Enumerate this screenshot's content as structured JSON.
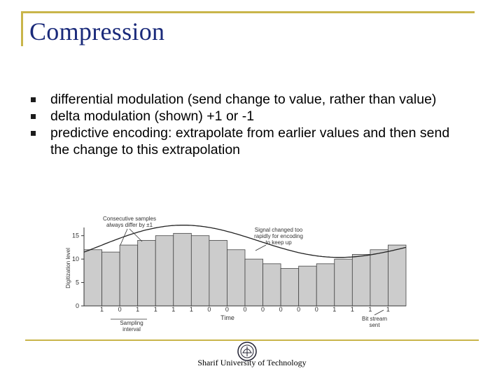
{
  "slide": {
    "title": "Compression",
    "bullets": [
      "differential modulation (send change to value, rather than value)",
      "delta modulation (shown) +1 or -1",
      "predictive encoding: extrapolate from earlier values and then send the change to this extrapolation"
    ],
    "footer": "Sharif University of Technology"
  },
  "chart_data": {
    "type": "bar",
    "subtype": "delta-modulation staircase with analog signal",
    "ylabel": "Digitization level",
    "xlabel": "Time",
    "ylim": [
      0,
      16
    ],
    "yticks": [
      0,
      5,
      10,
      15
    ],
    "values": [
      12,
      11.5,
      13,
      14,
      15,
      15.5,
      15,
      14,
      12,
      10,
      9,
      8,
      8.5,
      9,
      10,
      11,
      12,
      13
    ],
    "bits": [
      "1",
      "0",
      "1",
      "1",
      "1",
      "1",
      "0",
      "0",
      "0",
      "0",
      "0",
      "0",
      "0",
      "1",
      "1",
      "1",
      "1"
    ],
    "annotations": {
      "consecutive": [
        "Consecutive samples",
        "always differ by ±1"
      ],
      "signal_changed": [
        "Signal changed too",
        "rapidly for encoding",
        "to keep up"
      ],
      "sampling": [
        "Sampling",
        "interval"
      ],
      "bitstream": [
        "Bit stream",
        "sent"
      ]
    }
  },
  "colors": {
    "title": "#1a2a7a",
    "rule": "#c9b54a",
    "bar": "#cccccc"
  }
}
